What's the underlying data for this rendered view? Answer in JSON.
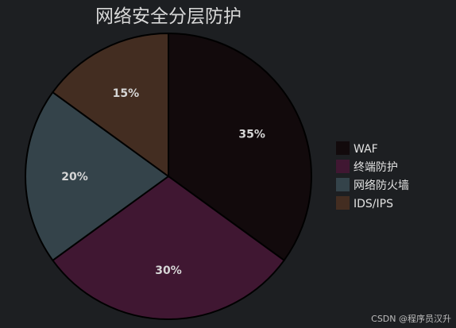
{
  "chart_data": {
    "type": "pie",
    "title": "网络安全分层防护",
    "slices": [
      {
        "label": "WAF",
        "value": 35,
        "pct_label": "35%",
        "color": "#120a0c"
      },
      {
        "label": "终端防护",
        "value": 30,
        "pct_label": "30%",
        "color": "#401732"
      },
      {
        "label": "网络防火墙",
        "value": 20,
        "pct_label": "20%",
        "color": "#34434a"
      },
      {
        "label": "IDS/IPS",
        "value": 15,
        "pct_label": "15%",
        "color": "#432d21"
      }
    ],
    "legend_position": "right",
    "start_angle": "top",
    "direction": "clockwise"
  },
  "watermark": "CSDN @程序员汉升"
}
